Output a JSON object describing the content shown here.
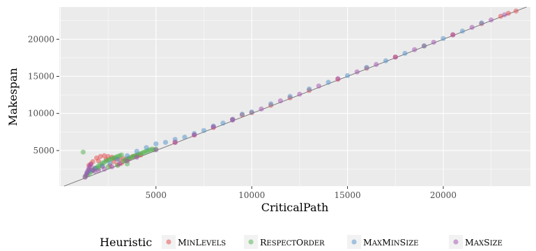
{
  "chart_data": {
    "type": "scatter",
    "xlabel": "CriticalPath",
    "ylabel": "Makespan",
    "xlim": [
      -50,
      24550
    ],
    "ylim": [
      200,
      24350
    ],
    "xticks": [
      5000,
      10000,
      15000,
      20000
    ],
    "yticks": [
      5000,
      10000,
      15000,
      20000
    ],
    "grid": true,
    "reference_line": "y = x",
    "legend": {
      "title": "Heuristic",
      "position": "bottom",
      "entries": [
        {
          "name": "MinLevels",
          "color": "#e4474a"
        },
        {
          "name": "RespectOrder",
          "color": "#4daf4a"
        },
        {
          "name": "MaxMinSize",
          "color": "#4f8fca"
        },
        {
          "name": "MaxSize",
          "color": "#a24fb0"
        }
      ]
    },
    "series": [
      {
        "name": "MinLevels",
        "color": "#e4474a",
        "x": [
          1500,
          1700,
          1900,
          2100,
          2300,
          2500,
          2700,
          2900,
          3100,
          3300,
          1600,
          2000,
          2400,
          2800,
          3200,
          1800,
          2200,
          2600,
          3000,
          3400,
          3600,
          3800,
          4000,
          4200,
          6000,
          7000,
          8000,
          9000,
          9500,
          10000,
          11000,
          12000,
          13000,
          14500,
          16000,
          17500,
          19000,
          20500,
          22000,
          23000,
          23400,
          23800
        ],
        "y": [
          3000,
          3500,
          4000,
          4200,
          4300,
          4200,
          4100,
          3900,
          3800,
          3900,
          3200,
          3600,
          3800,
          3500,
          3300,
          2600,
          2900,
          3000,
          3100,
          3700,
          3900,
          4200,
          4300,
          4400,
          6100,
          7100,
          8100,
          9200,
          9800,
          10100,
          11100,
          12100,
          13100,
          14600,
          16100,
          17600,
          19100,
          20600,
          22100,
          23100,
          23500,
          23800
        ]
      },
      {
        "name": "RespectOrder",
        "color": "#4daf4a",
        "x": [
          1200,
          1300,
          1400,
          1500,
          1600,
          1700,
          1800,
          1900,
          2000,
          2100,
          2200,
          2300,
          2400,
          2500,
          2600,
          2700,
          2800,
          2900,
          3000,
          3100,
          3200,
          3300,
          3400,
          3500,
          3600,
          3700,
          3800,
          3900,
          4000,
          4100,
          4200,
          4300,
          4400,
          4500,
          4600,
          4700,
          4800,
          4900,
          5000,
          1500,
          2000,
          2500,
          3000,
          3500
        ],
        "y": [
          4800,
          1500,
          1700,
          1900,
          2100,
          2300,
          2500,
          2700,
          2900,
          3100,
          3300,
          3400,
          3600,
          3700,
          3800,
          3900,
          4000,
          4100,
          4200,
          4300,
          4400,
          3600,
          3700,
          3900,
          4000,
          4100,
          4200,
          4300,
          4400,
          4500,
          4600,
          4700,
          4800,
          4900,
          5000,
          5100,
          5200,
          5100,
          5200,
          2400,
          2600,
          2800,
          3000,
          3200
        ]
      },
      {
        "name": "MaxMinSize",
        "color": "#4f8fca",
        "x": [
          1400,
          1600,
          1800,
          2200,
          2600,
          3000,
          3500,
          4000,
          4500,
          5000,
          5500,
          6000,
          6500,
          7000,
          7500,
          8000,
          8500,
          9000,
          9500,
          10000,
          11000,
          12000,
          13000,
          14000,
          15000,
          16000,
          17000,
          18000,
          19000,
          20000,
          21000,
          22000
        ],
        "y": [
          2000,
          2300,
          2600,
          2900,
          3300,
          3800,
          4300,
          4900,
          5400,
          5900,
          6100,
          6500,
          6800,
          7300,
          7700,
          8300,
          8700,
          9200,
          9900,
          10200,
          11300,
          12300,
          13300,
          14200,
          15100,
          16200,
          17100,
          18100,
          19100,
          20100,
          21100,
          22200
        ]
      },
      {
        "name": "MaxSize",
        "color": "#a24fb0",
        "x": [
          1300,
          1350,
          1400,
          1450,
          1500,
          1550,
          1600,
          1700,
          1800,
          2000,
          2300,
          2700,
          3100,
          3500,
          4000,
          5000,
          6000,
          7000,
          8000,
          9000,
          10500,
          11500,
          12500,
          13500,
          14500,
          15500,
          16500,
          17500,
          18500,
          19500,
          20500,
          21500,
          22500,
          23200
        ],
        "y": [
          1400,
          1700,
          2000,
          2300,
          2600,
          2900,
          3100,
          2400,
          2200,
          2300,
          2500,
          2800,
          3200,
          3600,
          4100,
          5100,
          6100,
          7100,
          8200,
          9100,
          10600,
          11700,
          12600,
          13700,
          14700,
          15600,
          16600,
          17600,
          18600,
          19600,
          20600,
          21600,
          22600,
          23300
        ]
      }
    ]
  }
}
